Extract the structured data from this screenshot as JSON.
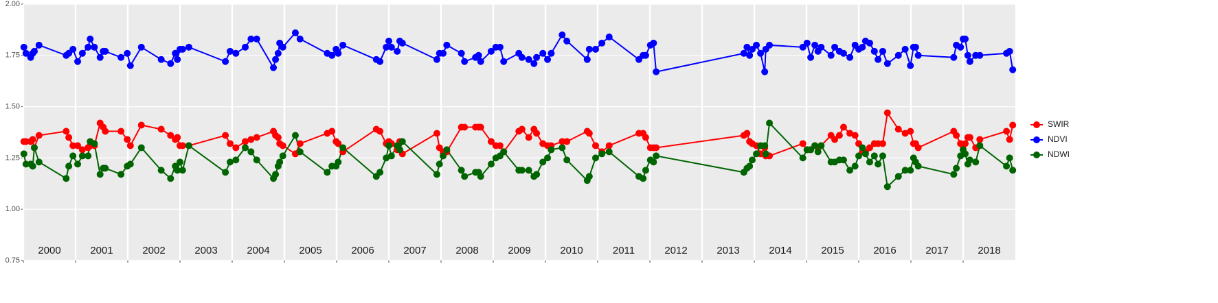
{
  "chart_data": {
    "type": "line",
    "x": [
      2000.01,
      2000.05,
      2000.14,
      2000.18,
      2000.21,
      2000.3,
      2000.82,
      2000.87,
      2000.95,
      2001.04,
      2001.13,
      2001.24,
      2001.28,
      2001.36,
      2001.47,
      2001.53,
      2001.57,
      2001.87,
      2001.99,
      2002.05,
      2002.26,
      2002.64,
      2002.82,
      2002.91,
      2002.95,
      2003.0,
      2003.05,
      2003.17,
      2003.87,
      2003.96,
      2004.07,
      2004.25,
      2004.36,
      2004.47,
      2004.79,
      2004.83,
      2004.88,
      2004.91,
      2004.97,
      2005.21,
      2005.3,
      2005.82,
      2005.91,
      2005.99,
      2006.03,
      2006.12,
      2006.76,
      2006.83,
      2006.95,
      2007.0,
      2007.05,
      2007.16,
      2007.21,
      2007.26,
      2007.92,
      2007.97,
      2008.04,
      2008.11,
      2008.39,
      2008.45,
      2008.66,
      2008.72,
      2008.76,
      2008.96,
      2009.05,
      2009.13,
      2009.2,
      2009.49,
      2009.55,
      2009.68,
      2009.78,
      2009.83,
      2009.95,
      2010.04,
      2010.11,
      2010.32,
      2010.41,
      2010.8,
      2010.84,
      2010.96,
      2011.08,
      2011.22,
      2011.79,
      2011.87,
      2011.92,
      2012.01,
      2012.07,
      2012.12,
      2013.8,
      2013.86,
      2013.91,
      2013.96,
      2014.04,
      2014.12,
      2014.2,
      2014.22,
      2014.29,
      2014.93,
      2015.01,
      2015.08,
      2015.16,
      2015.22,
      2015.28,
      2015.47,
      2015.54,
      2015.63,
      2015.71,
      2015.83,
      2015.93,
      2016.0,
      2016.07,
      2016.13,
      2016.21,
      2016.3,
      2016.37,
      2016.46,
      2016.55,
      2016.76,
      2016.89,
      2016.99,
      2017.05,
      2017.09,
      2017.14,
      2017.82,
      2017.87,
      2017.95,
      2018.0,
      2018.04,
      2018.09,
      2018.13,
      2018.24,
      2018.32,
      2018.83,
      2018.89,
      2018.95
    ],
    "series": [
      {
        "name": "SWIR",
        "color": "#ff0000",
        "values": [
          1.33,
          1.33,
          1.33,
          1.34,
          1.3,
          1.36,
          1.38,
          1.35,
          1.31,
          1.31,
          1.29,
          1.3,
          1.31,
          1.31,
          1.42,
          1.4,
          1.38,
          1.38,
          1.34,
          1.31,
          1.41,
          1.39,
          1.36,
          1.34,
          1.35,
          1.31,
          1.31,
          1.31,
          1.36,
          1.32,
          1.3,
          1.33,
          1.34,
          1.35,
          1.38,
          1.36,
          1.35,
          1.32,
          1.31,
          1.27,
          1.32,
          1.37,
          1.38,
          1.33,
          1.32,
          1.28,
          1.39,
          1.38,
          1.32,
          1.33,
          1.32,
          1.29,
          1.33,
          1.27,
          1.37,
          1.3,
          1.28,
          1.28,
          1.4,
          1.4,
          1.4,
          1.4,
          1.4,
          1.33,
          1.31,
          1.31,
          1.28,
          1.38,
          1.39,
          1.35,
          1.39,
          1.37,
          1.32,
          1.31,
          1.31,
          1.33,
          1.33,
          1.38,
          1.37,
          1.31,
          1.28,
          1.31,
          1.37,
          1.37,
          1.35,
          1.3,
          1.3,
          1.3,
          1.36,
          1.37,
          1.33,
          1.32,
          1.31,
          1.27,
          1.3,
          1.26,
          1.26,
          1.32,
          1.29,
          1.29,
          1.31,
          1.3,
          1.31,
          1.36,
          1.34,
          1.36,
          1.4,
          1.37,
          1.36,
          1.32,
          1.28,
          1.28,
          1.3,
          1.32,
          1.32,
          1.32,
          1.47,
          1.39,
          1.37,
          1.38,
          1.32,
          1.32,
          1.3,
          1.38,
          1.36,
          1.32,
          1.31,
          1.32,
          1.35,
          1.35,
          1.3,
          1.34,
          1.38,
          1.34,
          1.41
        ]
      },
      {
        "name": "NDVI",
        "color": "#0000ff",
        "values": [
          1.79,
          1.76,
          1.74,
          1.76,
          1.77,
          1.8,
          1.75,
          1.76,
          1.78,
          1.72,
          1.76,
          1.79,
          1.83,
          1.79,
          1.74,
          1.77,
          1.77,
          1.74,
          1.76,
          1.7,
          1.79,
          1.73,
          1.71,
          1.76,
          1.73,
          1.78,
          1.78,
          1.79,
          1.72,
          1.77,
          1.76,
          1.79,
          1.83,
          1.83,
          1.69,
          1.73,
          1.76,
          1.81,
          1.79,
          1.86,
          1.83,
          1.76,
          1.75,
          1.78,
          1.76,
          1.8,
          1.73,
          1.72,
          1.79,
          1.82,
          1.79,
          1.77,
          1.82,
          1.81,
          1.73,
          1.76,
          1.76,
          1.8,
          1.76,
          1.72,
          1.74,
          1.75,
          1.72,
          1.77,
          1.79,
          1.79,
          1.72,
          1.76,
          1.74,
          1.73,
          1.71,
          1.74,
          1.76,
          1.73,
          1.76,
          1.85,
          1.82,
          1.73,
          1.78,
          1.78,
          1.81,
          1.84,
          1.73,
          1.75,
          1.75,
          1.8,
          1.81,
          1.67,
          1.76,
          1.79,
          1.75,
          1.78,
          1.8,
          1.76,
          1.67,
          1.78,
          1.8,
          1.79,
          1.81,
          1.74,
          1.8,
          1.77,
          1.79,
          1.75,
          1.79,
          1.77,
          1.76,
          1.74,
          1.8,
          1.78,
          1.79,
          1.82,
          1.81,
          1.77,
          1.73,
          1.77,
          1.71,
          1.75,
          1.78,
          1.7,
          1.79,
          1.79,
          1.75,
          1.74,
          1.8,
          1.79,
          1.83,
          1.83,
          1.75,
          1.72,
          1.75,
          1.75,
          1.76,
          1.77,
          1.68
        ]
      },
      {
        "name": "NDWI",
        "color": "#006400",
        "values": [
          1.27,
          1.22,
          1.22,
          1.21,
          1.3,
          1.23,
          1.15,
          1.21,
          1.26,
          1.22,
          1.26,
          1.26,
          1.33,
          1.32,
          1.17,
          1.2,
          1.2,
          1.17,
          1.21,
          1.22,
          1.3,
          1.19,
          1.15,
          1.21,
          1.19,
          1.23,
          1.19,
          1.31,
          1.18,
          1.23,
          1.24,
          1.3,
          1.28,
          1.24,
          1.15,
          1.17,
          1.21,
          1.23,
          1.26,
          1.36,
          1.28,
          1.18,
          1.21,
          1.21,
          1.23,
          1.3,
          1.16,
          1.18,
          1.25,
          1.31,
          1.26,
          1.31,
          1.29,
          1.33,
          1.17,
          1.22,
          1.26,
          1.29,
          1.19,
          1.16,
          1.18,
          1.18,
          1.16,
          1.22,
          1.25,
          1.26,
          1.28,
          1.19,
          1.19,
          1.19,
          1.16,
          1.17,
          1.23,
          1.25,
          1.29,
          1.3,
          1.24,
          1.14,
          1.16,
          1.25,
          1.27,
          1.28,
          1.16,
          1.15,
          1.19,
          1.24,
          1.23,
          1.26,
          1.18,
          1.2,
          1.21,
          1.24,
          1.27,
          1.31,
          1.31,
          1.27,
          1.42,
          1.25,
          1.29,
          1.29,
          1.31,
          1.28,
          1.31,
          1.23,
          1.23,
          1.24,
          1.24,
          1.19,
          1.21,
          1.26,
          1.3,
          1.27,
          1.23,
          1.26,
          1.22,
          1.26,
          1.11,
          1.16,
          1.19,
          1.19,
          1.25,
          1.23,
          1.21,
          1.17,
          1.2,
          1.26,
          1.29,
          1.27,
          1.22,
          1.24,
          1.23,
          1.31,
          1.21,
          1.25,
          1.19
        ]
      }
    ],
    "xlim": [
      2000,
      2019
    ],
    "xticks": [
      2000,
      2001,
      2002,
      2003,
      2004,
      2005,
      2006,
      2007,
      2008,
      2009,
      2010,
      2011,
      2012,
      2013,
      2014,
      2015,
      2016,
      2017,
      2018
    ],
    "ylim": [
      0.75,
      2.0
    ],
    "yticks": [
      {
        "value": 0.75,
        "label": "0.75"
      },
      {
        "value": 1,
        "label": "1.00"
      },
      {
        "value": 1.25,
        "label": "1.25"
      },
      {
        "value": 1.5,
        "label": "1.50"
      },
      {
        "value": 1.75,
        "label": "1.75"
      },
      {
        "value": 2,
        "label": "2.00"
      }
    ],
    "grid": true,
    "legend": "right"
  }
}
